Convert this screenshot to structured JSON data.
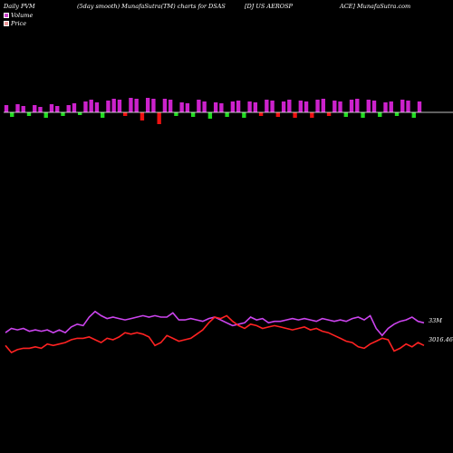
{
  "header": {
    "title_1": "Daily PVM",
    "title_2": "(5day smooth) MunafaSutra(TM) charts for DSAS",
    "title_3": "[DJ US AEROSP",
    "title_4": "ACE] MunafaSutra.com"
  },
  "legend": {
    "volume_label": "Volume",
    "price_label": "Price",
    "volume_color": "#cc44cc",
    "price_color": "#ee9999"
  },
  "colors": {
    "pvm_line": "#cc44ee",
    "price_line": "#ff2222",
    "bar_up": "#cc22cc",
    "bar_down_green": "#22dd22",
    "bar_down_red": "#ee1111",
    "baseline": "#ffffff"
  },
  "chart_data": [
    {
      "type": "bar",
      "title": "Volume bars",
      "categories": [
        1,
        2,
        3,
        4,
        5,
        6,
        7,
        8,
        9,
        10,
        11,
        12,
        13,
        14,
        15,
        16,
        17,
        18,
        19,
        20,
        21,
        22,
        23,
        24,
        25,
        26,
        27,
        28,
        29,
        30,
        31,
        32,
        33,
        34,
        35,
        36,
        37,
        38,
        39,
        40,
        41,
        42,
        43,
        44,
        45,
        46,
        47,
        48,
        49,
        50,
        51,
        52,
        53,
        54,
        55,
        56,
        57,
        58,
        59,
        60,
        61,
        62,
        63,
        64,
        65,
        66,
        67,
        68,
        69,
        70,
        71,
        72,
        73,
        74
      ],
      "values": [
        8,
        -5,
        9,
        7,
        -4,
        8,
        6,
        -6,
        9,
        7,
        -4,
        8,
        10,
        -3,
        12,
        14,
        11,
        -6,
        13,
        15,
        14,
        -4,
        16,
        15,
        -9,
        16,
        15,
        -13,
        15,
        14,
        -4,
        11,
        10,
        -5,
        14,
        12,
        -7,
        11,
        10,
        -5,
        12,
        13,
        -6,
        12,
        11,
        -4,
        14,
        13,
        -5,
        12,
        14,
        -6,
        13,
        12,
        -6,
        14,
        15,
        -4,
        13,
        12,
        -5,
        14,
        15,
        -6,
        14,
        13,
        -5,
        11,
        12,
        -4,
        14,
        13,
        -6,
        12
      ],
      "colors": [
        "up",
        "down_green",
        "up",
        "up",
        "down_green",
        "up",
        "up",
        "down_green",
        "up",
        "up",
        "down_green",
        "up",
        "up",
        "down_green",
        "up",
        "up",
        "up",
        "down_green",
        "up",
        "up",
        "up",
        "down_red",
        "up",
        "up",
        "down_red",
        "up",
        "up",
        "down_red",
        "up",
        "up",
        "down_green",
        "up",
        "up",
        "down_green",
        "up",
        "up",
        "down_green",
        "up",
        "up",
        "down_green",
        "up",
        "up",
        "down_green",
        "up",
        "up",
        "down_red",
        "up",
        "up",
        "down_red",
        "up",
        "up",
        "down_red",
        "up",
        "up",
        "down_red",
        "up",
        "up",
        "down_red",
        "up",
        "up",
        "down_green",
        "up",
        "up",
        "down_green",
        "up",
        "up",
        "down_green",
        "up",
        "up",
        "down_green",
        "up",
        "up",
        "down_green",
        "up"
      ],
      "ylim": [
        -15,
        17
      ]
    },
    {
      "type": "line",
      "title": "PVM and Price",
      "x": [
        0,
        1,
        2,
        3,
        4,
        5,
        6,
        7,
        8,
        9,
        10,
        11,
        12,
        13,
        14,
        15,
        16,
        17,
        18,
        19,
        20,
        21,
        22,
        23,
        24,
        25,
        26,
        27,
        28,
        29,
        30,
        31,
        32,
        33,
        34,
        35,
        36,
        37,
        38,
        39,
        40,
        41,
        42,
        43,
        44,
        45,
        46,
        47,
        48,
        49,
        50,
        51,
        52,
        53,
        54,
        55,
        56,
        57,
        58,
        59,
        60,
        61,
        62,
        63,
        64,
        65,
        66,
        67,
        68,
        69,
        70
      ],
      "series": [
        {
          "name": "PVM",
          "values": [
            61,
            64,
            63,
            64,
            62,
            63,
            62,
            63,
            61,
            63,
            61,
            65,
            67,
            66,
            72,
            76,
            73,
            71,
            72,
            71,
            70,
            71,
            72,
            73,
            72,
            73,
            72,
            72,
            75,
            70,
            70,
            71,
            70,
            69,
            71,
            72,
            70,
            68,
            66,
            67,
            68,
            72,
            70,
            71,
            68,
            69,
            69,
            70,
            71,
            70,
            71,
            70,
            69,
            71,
            70,
            69,
            70,
            69,
            71,
            72,
            70,
            73,
            64,
            59,
            64,
            67,
            69,
            70,
            72,
            69,
            68
          ],
          "label": "33M"
        },
        {
          "name": "Price",
          "values": [
            52,
            47,
            49,
            50,
            50,
            51,
            50,
            53,
            52,
            53,
            54,
            56,
            57,
            57,
            58,
            56,
            54,
            57,
            56,
            58,
            61,
            60,
            61,
            60,
            58,
            52,
            54,
            59,
            57,
            55,
            56,
            57,
            60,
            63,
            68,
            72,
            71,
            73,
            69,
            66,
            64,
            67,
            66,
            64,
            65,
            66,
            65,
            64,
            63,
            64,
            65,
            63,
            64,
            62,
            61,
            59,
            57,
            55,
            54,
            51,
            50,
            53,
            55,
            57,
            56,
            48,
            50,
            53,
            51,
            54,
            52
          ],
          "label": "3016.46"
        }
      ],
      "ylim": [
        40,
        80
      ]
    }
  ],
  "labels": {
    "pvm_value": "33M",
    "price_value": "3016.46"
  }
}
